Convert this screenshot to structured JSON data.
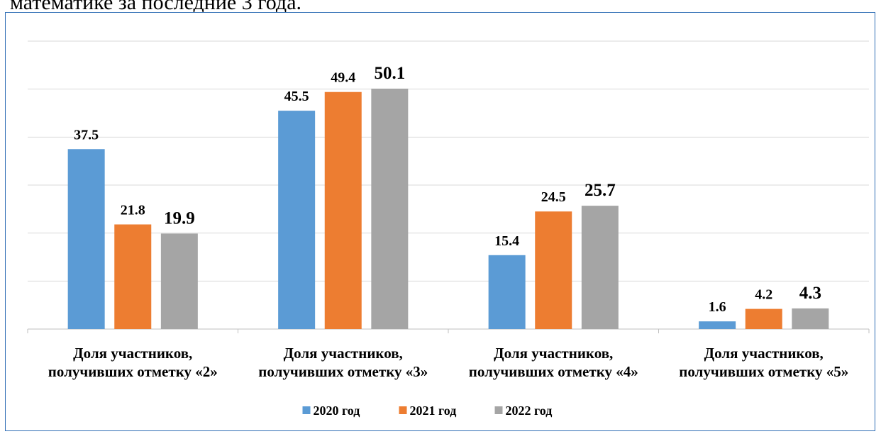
{
  "caption": "математике за последние 3 года.",
  "chart_data": {
    "type": "bar",
    "title": "",
    "xlabel": "",
    "ylabel": "",
    "categories": [
      [
        "Доля участников,",
        "получивших отметку «2»"
      ],
      [
        "Доля участников,",
        "получивших отметку «3»"
      ],
      [
        "Доля участников,",
        "получивших отметку «4»"
      ],
      [
        "Доля участников,",
        "получивших отметку «5»"
      ]
    ],
    "series": [
      {
        "name": "2020 год",
        "color": "#5b9bd5",
        "values": [
          37.5,
          45.5,
          15.4,
          1.6
        ]
      },
      {
        "name": "2021 год",
        "color": "#ed7d31",
        "values": [
          21.8,
          49.4,
          24.5,
          4.2
        ]
      },
      {
        "name": "2022 год",
        "color": "#a5a5a5",
        "values": [
          19.9,
          50.1,
          25.7,
          4.3
        ]
      }
    ],
    "ylim": [
      0,
      60
    ],
    "gridlines": true,
    "y_tick_labels_visible": false,
    "data_labels": true,
    "legend_position": "bottom"
  }
}
